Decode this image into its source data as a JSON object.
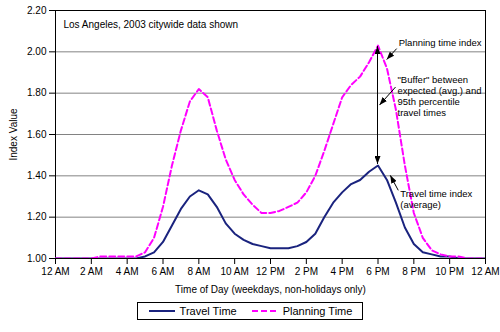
{
  "chart_data": {
    "type": "line",
    "title": "Los Angeles, 2003 citywide data shown",
    "x_label": "Time of Day (weekdays, non-holidays only)",
    "y_label": "Index Value",
    "x": [
      0,
      0.5,
      1,
      1.5,
      2,
      2.5,
      3,
      3.5,
      4,
      4.5,
      5,
      5.5,
      6,
      6.5,
      7,
      7.5,
      8,
      8.5,
      9,
      9.5,
      10,
      10.5,
      11,
      11.5,
      12,
      12.5,
      13,
      13.5,
      14,
      14.5,
      15,
      15.5,
      16,
      16.5,
      17,
      17.5,
      18,
      18.5,
      19,
      19.5,
      20,
      20.5,
      21,
      21.5,
      22,
      22.5,
      23,
      23.5,
      24
    ],
    "series": [
      {
        "name": "Travel Time",
        "color": "#1a237e",
        "line_style": "solid",
        "values": [
          1.0,
          1.0,
          1.0,
          1.0,
          1.0,
          1.0,
          1.0,
          1.0,
          1.0,
          1.0,
          1.01,
          1.03,
          1.08,
          1.16,
          1.24,
          1.3,
          1.33,
          1.31,
          1.25,
          1.17,
          1.12,
          1.09,
          1.07,
          1.06,
          1.05,
          1.05,
          1.05,
          1.06,
          1.08,
          1.12,
          1.2,
          1.27,
          1.32,
          1.36,
          1.38,
          1.42,
          1.45,
          1.38,
          1.27,
          1.15,
          1.07,
          1.03,
          1.02,
          1.01,
          1.01,
          1.0,
          1.0,
          1.0,
          1.0
        ]
      },
      {
        "name": "Planning Time",
        "color": "#ff00ff",
        "line_style": "dashed",
        "values": [
          1.0,
          1.0,
          1.0,
          1.0,
          1.0,
          1.01,
          1.01,
          1.01,
          1.01,
          1.01,
          1.03,
          1.1,
          1.25,
          1.45,
          1.62,
          1.76,
          1.82,
          1.78,
          1.62,
          1.48,
          1.38,
          1.31,
          1.26,
          1.22,
          1.22,
          1.23,
          1.25,
          1.27,
          1.32,
          1.4,
          1.52,
          1.65,
          1.78,
          1.84,
          1.88,
          1.95,
          2.03,
          1.92,
          1.72,
          1.45,
          1.22,
          1.1,
          1.04,
          1.02,
          1.01,
          1.01,
          1.0,
          1.0,
          1.0
        ]
      }
    ],
    "xlim": [
      0,
      24
    ],
    "ylim": [
      1,
      2.2
    ],
    "xticks": [
      {
        "value": 0,
        "label": "12 AM"
      },
      {
        "value": 2,
        "label": "2 AM"
      },
      {
        "value": 4,
        "label": "4 AM"
      },
      {
        "value": 6,
        "label": "6 AM"
      },
      {
        "value": 8,
        "label": "8 AM"
      },
      {
        "value": 10,
        "label": "10 AM"
      },
      {
        "value": 12,
        "label": "12 PM"
      },
      {
        "value": 14,
        "label": "2 PM"
      },
      {
        "value": 16,
        "label": "4 PM"
      },
      {
        "value": 18,
        "label": "6 PM"
      },
      {
        "value": 20,
        "label": "8 PM"
      },
      {
        "value": 22,
        "label": "10 PM"
      },
      {
        "value": 24,
        "label": "12 AM"
      }
    ],
    "yticks": [
      {
        "value": 1,
        "label": "1.00"
      },
      {
        "value": 1.2,
        "label": "1.20"
      },
      {
        "value": 1.4,
        "label": "1.40"
      },
      {
        "value": 1.6,
        "label": "1.60"
      },
      {
        "value": 1.8,
        "label": "1.80"
      },
      {
        "value": 2,
        "label": "2.00"
      },
      {
        "value": 2.2,
        "label": "2.20"
      }
    ],
    "grid": true,
    "legend": "bottom",
    "annotations": [
      {
        "text": "Planning time index",
        "x": 18.4,
        "y": 1.96
      },
      {
        "text": "\"Buffer\" between\nexpected (avg.) and\n95th percentile\ntravel times",
        "x": 18
      },
      {
        "text": "Travel time index\n(average)",
        "x": 18.6,
        "y": 1.4
      }
    ]
  }
}
